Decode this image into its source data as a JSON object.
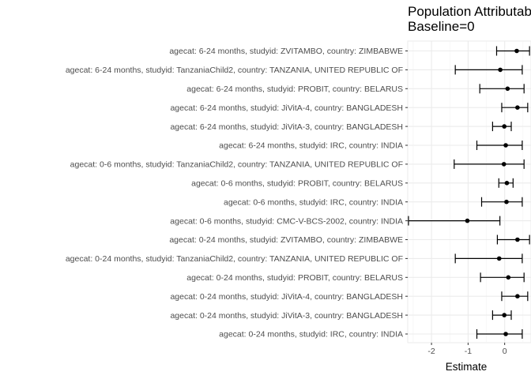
{
  "chart_data": {
    "type": "forest",
    "title_lines": [
      "Population Attributable",
      "Baseline=0"
    ],
    "xlabel": "Estimate",
    "ylabel": "",
    "xlim": [
      -2.65,
      0.72
    ],
    "xticks": [
      -2,
      -1,
      0
    ],
    "xtick_labels": [
      "-2",
      "-1",
      "0"
    ],
    "grid": true,
    "colors": {
      "point": "#000000",
      "errorbar": "#000000",
      "grid": "#ebebeb",
      "axis_text": "#4d4d4d"
    },
    "rows": [
      {
        "label": "agecat: 6-24 months, studyid: ZVITAMBO, country: ZIMBABWE",
        "estimate": 0.33,
        "lower": -0.22,
        "upper": 0.68
      },
      {
        "label": "agecat: 6-24 months, studyid: TanzaniaChild2, country: TANZANIA, UNITED REPUBLIC OF",
        "estimate": -0.12,
        "lower": -1.35,
        "upper": 0.48
      },
      {
        "label": "agecat: 6-24 months, studyid: PROBIT, country: BELARUS",
        "estimate": 0.08,
        "lower": -0.68,
        "upper": 0.53
      },
      {
        "label": "agecat: 6-24 months, studyid: JiVitA-4, country: BANGLADESH",
        "estimate": 0.35,
        "lower": -0.08,
        "upper": 0.63
      },
      {
        "label": "agecat: 6-24 months, studyid: JiVitA-3, country: BANGLADESH",
        "estimate": -0.01,
        "lower": -0.33,
        "upper": 0.18
      },
      {
        "label": "agecat: 6-24 months, studyid: IRC, country: INDIA",
        "estimate": 0.03,
        "lower": -0.76,
        "upper": 0.48
      },
      {
        "label": "agecat: 0-6 months, studyid: TanzaniaChild2, country: TANZANIA, UNITED REPUBLIC OF",
        "estimate": -0.02,
        "lower": -1.38,
        "upper": 0.53
      },
      {
        "label": "agecat: 0-6 months, studyid: PROBIT, country: BELARUS",
        "estimate": 0.06,
        "lower": -0.16,
        "upper": 0.23
      },
      {
        "label": "agecat: 0-6 months, studyid: IRC, country: INDIA",
        "estimate": 0.05,
        "lower": -0.63,
        "upper": 0.48
      },
      {
        "label": "agecat: 0-6 months, studyid: CMC-V-BCS-2002, country: INDIA",
        "estimate": -1.02,
        "lower": -2.63,
        "upper": -0.13
      },
      {
        "label": "agecat: 0-24 months, studyid: ZVITAMBO, country: ZIMBABWE",
        "estimate": 0.35,
        "lower": -0.2,
        "upper": 0.68
      },
      {
        "label": "agecat: 0-24 months, studyid: TanzaniaChild2, country: TANZANIA, UNITED REPUBLIC OF",
        "estimate": -0.15,
        "lower": -1.35,
        "upper": 0.48
      },
      {
        "label": "agecat: 0-24 months, studyid: PROBIT, country: BELARUS",
        "estimate": 0.1,
        "lower": -0.66,
        "upper": 0.53
      },
      {
        "label": "agecat: 0-24 months, studyid: JiVitA-4, country: BANGLADESH",
        "estimate": 0.35,
        "lower": -0.08,
        "upper": 0.63
      },
      {
        "label": "agecat: 0-24 months, studyid: JiVitA-3, country: BANGLADESH",
        "estimate": -0.01,
        "lower": -0.33,
        "upper": 0.18
      },
      {
        "label": "agecat: 0-24 months, studyid: IRC, country: INDIA",
        "estimate": 0.03,
        "lower": -0.76,
        "upper": 0.48
      }
    ]
  }
}
